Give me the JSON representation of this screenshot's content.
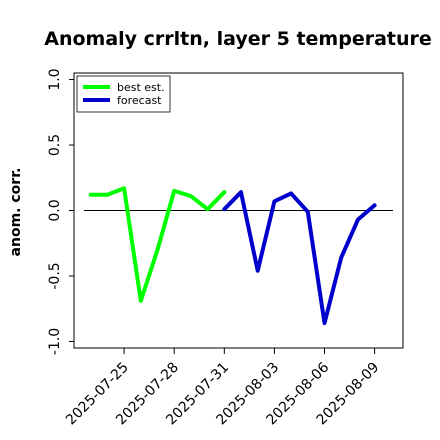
{
  "chart_data": {
    "type": "line",
    "title": "Anomaly crrltn, layer 5 temperature",
    "xlabel": "",
    "ylabel": "anom. corr.",
    "ylim": [
      -1.05,
      1.05
    ],
    "yticks": [
      -1.0,
      -0.5,
      0.0,
      0.5,
      1.0
    ],
    "ytick_labels": [
      "-1.0",
      "-0.5",
      "0.0",
      "0.5",
      "1.0"
    ],
    "xticks": [
      {
        "label": "2025-07-25",
        "day": 25,
        "color": "#000000"
      },
      {
        "label": "2025-07-28",
        "day": 28,
        "color": "#000000"
      },
      {
        "label": "2025-07-31",
        "day": 31,
        "color": "#228B22"
      },
      {
        "label": "2025-08-03",
        "day": 34,
        "color": "#000000"
      },
      {
        "label": "2025-08-06",
        "day": 37,
        "color": "#000000"
      },
      {
        "label": "2025-08-09",
        "day": 40,
        "color": "#000000"
      }
    ],
    "xlim_days": [
      22,
      41.7
    ],
    "zero_line": true,
    "grid": false,
    "legend_position": "top-left",
    "series": [
      {
        "name": "best est.",
        "color": "#00ff00",
        "x_days": [
          23,
          24,
          25,
          26,
          27,
          28,
          29,
          30,
          31
        ],
        "values": [
          0.12,
          0.12,
          0.17,
          -0.69,
          -0.3,
          0.15,
          0.11,
          0.01,
          0.14
        ]
      },
      {
        "name": "forecast",
        "color": "#0000cc",
        "x_days": [
          31,
          32,
          33,
          34,
          35,
          36,
          37,
          38,
          39,
          40
        ],
        "values": [
          0.01,
          0.14,
          -0.46,
          0.07,
          0.13,
          -0.01,
          -0.86,
          -0.36,
          -0.07,
          0.04
        ]
      }
    ]
  }
}
